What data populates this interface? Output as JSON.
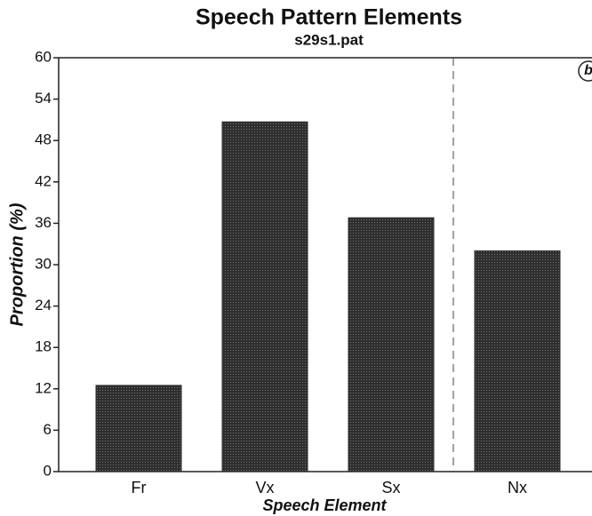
{
  "chart_data": {
    "type": "bar",
    "title": "Speech Pattern Elements",
    "subtitle": "s29s1.pat",
    "x_label": "Speech Element",
    "y_label": "Proportion (%)",
    "annotation": "b",
    "categories": [
      "Fr",
      "Vx",
      "Sx",
      "Nx"
    ],
    "values": [
      12.5,
      50.7,
      36.8,
      32.0
    ],
    "color": "#2e2e2e",
    "ylim": [
      0,
      60
    ],
    "yticks": [
      0,
      6,
      12,
      18,
      24,
      30,
      36,
      42,
      48,
      54,
      60
    ],
    "grid": false
  }
}
